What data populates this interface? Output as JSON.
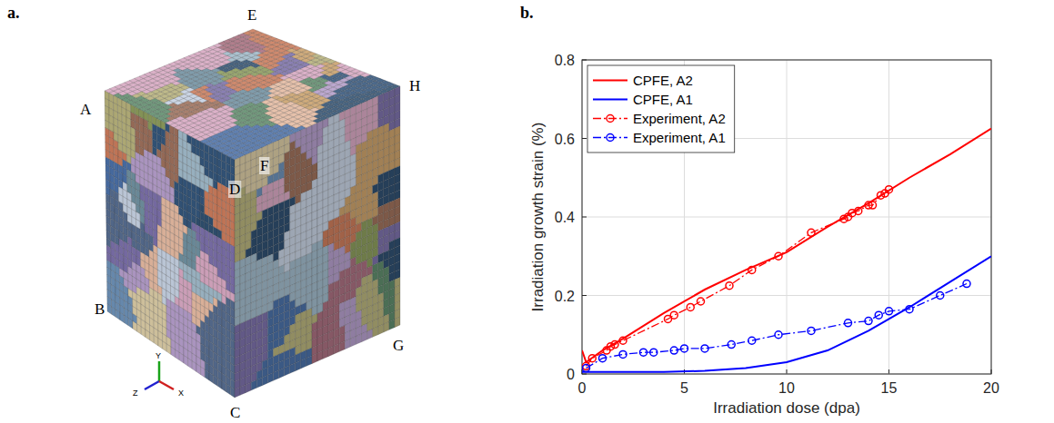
{
  "panel_labels": [
    "a.",
    "b."
  ],
  "cube": {
    "vertex_labels": [
      "E",
      "A",
      "H",
      "F",
      "D",
      "B",
      "C",
      "G"
    ],
    "axis_labels": [
      "Y",
      "Z",
      "X"
    ]
  },
  "chart_data": {
    "type": "line",
    "x_label": "Irradiation dose (dpa)",
    "y_label": "Irradiation growth strain (%)",
    "xlim": [
      0,
      20
    ],
    "ylim": [
      0,
      0.8
    ],
    "xticks": [
      0,
      5,
      10,
      15,
      20
    ],
    "yticks": [
      0,
      0.2,
      0.4,
      0.6,
      0.8
    ],
    "grid": true,
    "legend": "upper left",
    "series": [
      {
        "name": "CPFE, A2",
        "color": "#ff0000",
        "line_style": "solid",
        "marker": "none",
        "x": [
          0,
          0.2,
          1,
          2,
          4,
          6,
          8,
          10,
          12,
          14,
          16,
          18,
          20
        ],
        "values": [
          0.06,
          0.03,
          0.06,
          0.09,
          0.155,
          0.215,
          0.265,
          0.31,
          0.375,
          0.435,
          0.5,
          0.56,
          0.625
        ]
      },
      {
        "name": "CPFE, A1",
        "color": "#0000ff",
        "line_style": "solid",
        "marker": "none",
        "x": [
          0,
          2,
          4,
          6,
          8,
          10,
          12,
          14,
          15,
          16,
          18,
          20
        ],
        "values": [
          0.005,
          0.005,
          0.005,
          0.008,
          0.015,
          0.03,
          0.06,
          0.11,
          0.14,
          0.17,
          0.235,
          0.3
        ]
      },
      {
        "name": "Experiment, A2",
        "color": "#ff0000",
        "line_style": "dashdot",
        "marker": "circle",
        "x": [
          0.2,
          0.5,
          1.2,
          1.4,
          1.6,
          2,
          4.2,
          4.5,
          5.3,
          5.8,
          7.2,
          8.3,
          9.6,
          11.2,
          12.8,
          13,
          13.2,
          13.5,
          14,
          14.2,
          14.6,
          14.8,
          15
        ],
        "values": [
          0.02,
          0.04,
          0.06,
          0.07,
          0.075,
          0.085,
          0.14,
          0.15,
          0.17,
          0.185,
          0.225,
          0.265,
          0.3,
          0.36,
          0.395,
          0.4,
          0.41,
          0.415,
          0.43,
          0.43,
          0.455,
          0.46,
          0.47
        ]
      },
      {
        "name": "Experiment, A1",
        "color": "#0000ff",
        "line_style": "dashdot",
        "marker": "circle",
        "x": [
          0.2,
          1,
          2,
          3,
          3.5,
          4.5,
          5,
          6,
          7.3,
          8.3,
          9.6,
          11.2,
          13,
          14,
          14.5,
          15,
          16,
          17.5,
          18.8
        ],
        "values": [
          0.015,
          0.04,
          0.05,
          0.055,
          0.055,
          0.06,
          0.065,
          0.065,
          0.075,
          0.085,
          0.1,
          0.11,
          0.13,
          0.135,
          0.15,
          0.16,
          0.165,
          0.2,
          0.23
        ]
      }
    ]
  }
}
